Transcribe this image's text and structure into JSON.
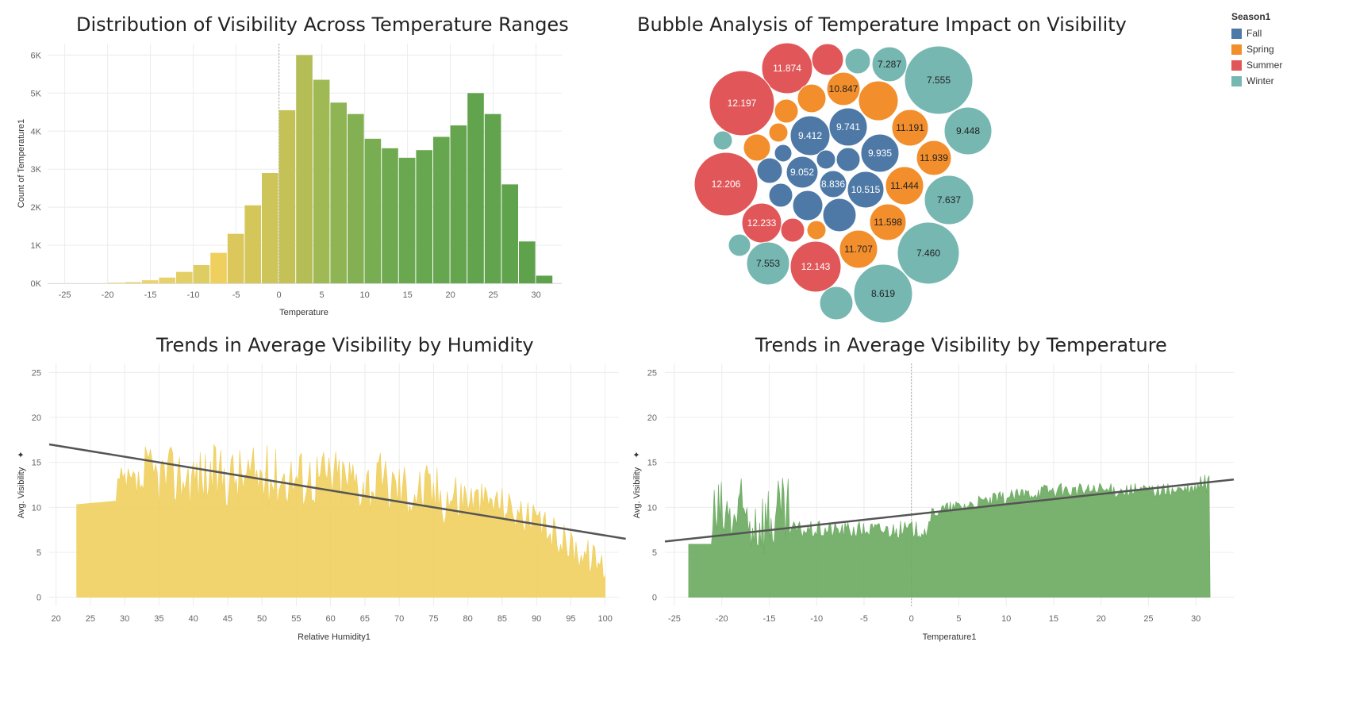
{
  "chart_data": [
    {
      "type": "bar",
      "title": "Distribution of Visibility Across Temperature Ranges",
      "xlabel": "Temperature",
      "ylabel": "Count of Temperature1",
      "xlim": [
        -27,
        33
      ],
      "ylim": [
        0,
        6300
      ],
      "bin_width": 2,
      "xticks": [
        -25,
        -20,
        -15,
        -10,
        -5,
        0,
        5,
        10,
        15,
        20,
        25,
        30
      ],
      "yticks": [
        0,
        1000,
        2000,
        3000,
        4000,
        5000,
        6000
      ],
      "ytick_labels": [
        "0K",
        "1K",
        "2K",
        "3K",
        "4K",
        "5K",
        "6K"
      ],
      "bin_starts": [
        -20,
        -18,
        -16,
        -14,
        -12,
        -10,
        -8,
        -6,
        -4,
        -2,
        0,
        2,
        4,
        6,
        8,
        10,
        12,
        14,
        16,
        18,
        20,
        22,
        24,
        26,
        28,
        30
      ],
      "values": [
        15,
        30,
        80,
        150,
        300,
        480,
        800,
        1300,
        2050,
        2900,
        4550,
        6000,
        5350,
        4750,
        4450,
        3800,
        3550,
        3300,
        3500,
        3850,
        4150,
        5000,
        4450,
        2600,
        1100,
        200
      ],
      "colors": [
        "#efd36a",
        "#efd36a",
        "#eed26a",
        "#e9d169",
        "#e3cf66",
        "#ddcd63",
        "#efcf5d",
        "#dcc75c",
        "#d5c65a",
        "#cdc45a",
        "#c4c256",
        "#b4bd56",
        "#9fb954",
        "#8fb453",
        "#82b052",
        "#78ad51",
        "#70aa50",
        "#6aa84f",
        "#67a74f",
        "#66a64e",
        "#64a54e",
        "#62a44d",
        "#61a44d",
        "#60a34d",
        "#5fa24c",
        "#5ea24c"
      ]
    },
    {
      "type": "scatter",
      "title": "Bubble Analysis of Temperature Impact on Visibility",
      "legend_title": "Season1",
      "legend_placement": "top-right",
      "series_colors": {
        "Fall": "#4e79a7",
        "Spring": "#f28e2b",
        "Summer": "#e15759",
        "Winter": "#76b7b2"
      },
      "legend": [
        "Fall",
        "Spring",
        "Summer",
        "Winter"
      ],
      "bubbles": [
        {
          "season": "Summer",
          "label": "11.874"
        },
        {
          "season": "Summer",
          "label": ""
        },
        {
          "season": "Winter",
          "label": ""
        },
        {
          "season": "Winter",
          "label": "7.287"
        },
        {
          "season": "Winter",
          "label": "7.555"
        },
        {
          "season": "Summer",
          "label": "12.197"
        },
        {
          "season": "Spring",
          "label": ""
        },
        {
          "season": "Spring",
          "label": ""
        },
        {
          "season": "Spring",
          "label": "10.847"
        },
        {
          "season": "Spring",
          "label": ""
        },
        {
          "season": "Fall",
          "label": "9.412"
        },
        {
          "season": "Fall",
          "label": "9.741"
        },
        {
          "season": "Spring",
          "label": "11.191"
        },
        {
          "season": "Winter",
          "label": "9.448"
        },
        {
          "season": "Winter",
          "label": ""
        },
        {
          "season": "Spring",
          "label": ""
        },
        {
          "season": "Spring",
          "label": ""
        },
        {
          "season": "Fall",
          "label": ""
        },
        {
          "season": "Fall",
          "label": "9.935"
        },
        {
          "season": "Spring",
          "label": "11.939"
        },
        {
          "season": "Summer",
          "label": "12.206"
        },
        {
          "season": "Fall",
          "label": ""
        },
        {
          "season": "Fall",
          "label": "9.052"
        },
        {
          "season": "Fall",
          "label": ""
        },
        {
          "season": "Fall",
          "label": ""
        },
        {
          "season": "Fall",
          "label": "8.836"
        },
        {
          "season": "Fall",
          "label": "10.515"
        },
        {
          "season": "Spring",
          "label": "11.444"
        },
        {
          "season": "Winter",
          "label": "7.637"
        },
        {
          "season": "Fall",
          "label": ""
        },
        {
          "season": "Fall",
          "label": ""
        },
        {
          "season": "Fall",
          "label": ""
        },
        {
          "season": "Spring",
          "label": "11.598"
        },
        {
          "season": "Summer",
          "label": "12.233"
        },
        {
          "season": "Summer",
          "label": ""
        },
        {
          "season": "Spring",
          "label": ""
        },
        {
          "season": "Winter",
          "label": ""
        },
        {
          "season": "Spring",
          "label": "11.707"
        },
        {
          "season": "Winter",
          "label": "7.460"
        },
        {
          "season": "Winter",
          "label": "7.553"
        },
        {
          "season": "Summer",
          "label": "12.143"
        },
        {
          "season": "Winter",
          "label": ""
        },
        {
          "season": "Winter",
          "label": "8.619"
        }
      ]
    },
    {
      "type": "area",
      "title": "Trends in Average Visibility by Humidity",
      "xlabel": "Relative Humidity1",
      "ylabel": "Avg. Visibility",
      "xlim": [
        19,
        102
      ],
      "ylim": [
        -1,
        26
      ],
      "xticks": [
        20,
        25,
        30,
        35,
        40,
        45,
        50,
        55,
        60,
        65,
        70,
        75,
        80,
        85,
        90,
        95,
        100
      ],
      "yticks": [
        0,
        5,
        10,
        15,
        20,
        25
      ],
      "color": "#efcf5d",
      "x_range": [
        23,
        100
      ],
      "trend_line": {
        "x": [
          19,
          103
        ],
        "y": [
          17,
          6.5
        ]
      }
    },
    {
      "type": "area",
      "title": "Trends in Average Visibility by Temperature",
      "xlabel": "Temperature1",
      "ylabel": "Avg. Visibility",
      "xlim": [
        -26,
        34
      ],
      "ylim": [
        -1,
        26
      ],
      "xticks": [
        -25,
        -20,
        -15,
        -10,
        -5,
        0,
        5,
        10,
        15,
        20,
        25,
        30
      ],
      "yticks": [
        0,
        5,
        10,
        15,
        20,
        25
      ],
      "color": "#6aaa5f",
      "x_range": [
        -23.5,
        31.5
      ],
      "trend_line": {
        "x": [
          -26,
          34
        ],
        "y": [
          6.2,
          13.1
        ]
      }
    }
  ]
}
